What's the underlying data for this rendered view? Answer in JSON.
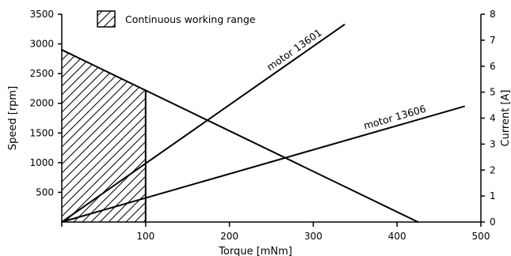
{
  "chart_data": {
    "type": "line",
    "xlabel": "Torque [mNm]",
    "ylabel_left": "Speed [rpm]",
    "ylabel_right": "Current [A]",
    "xlim": [
      0,
      500
    ],
    "ylim_left": [
      0,
      3500
    ],
    "ylim_right": [
      0,
      8
    ],
    "grid": false,
    "legend_position": "top-left",
    "x_ticks": [
      100,
      200,
      300,
      400,
      500
    ],
    "y_ticks_left": [
      500,
      1000,
      1500,
      2000,
      2500,
      3000,
      3500
    ],
    "y_ticks_right": [
      0,
      1,
      2,
      3,
      4,
      5,
      6,
      7,
      8
    ],
    "shaded_region": {
      "label": "Continuous working range",
      "x_range": [
        0,
        100
      ],
      "pattern": "diagonal hatch"
    },
    "series": [
      {
        "axis": "left",
        "x": [
          0,
          425
        ],
        "y": [
          2900,
          0
        ]
      },
      {
        "name": "motor 13601",
        "axis": "right",
        "x": [
          0,
          337
        ],
        "y": [
          0,
          7.6
        ]
      },
      {
        "name": "motor 13606",
        "axis": "right",
        "x": [
          0,
          480
        ],
        "y": [
          0,
          4.45
        ]
      }
    ]
  }
}
